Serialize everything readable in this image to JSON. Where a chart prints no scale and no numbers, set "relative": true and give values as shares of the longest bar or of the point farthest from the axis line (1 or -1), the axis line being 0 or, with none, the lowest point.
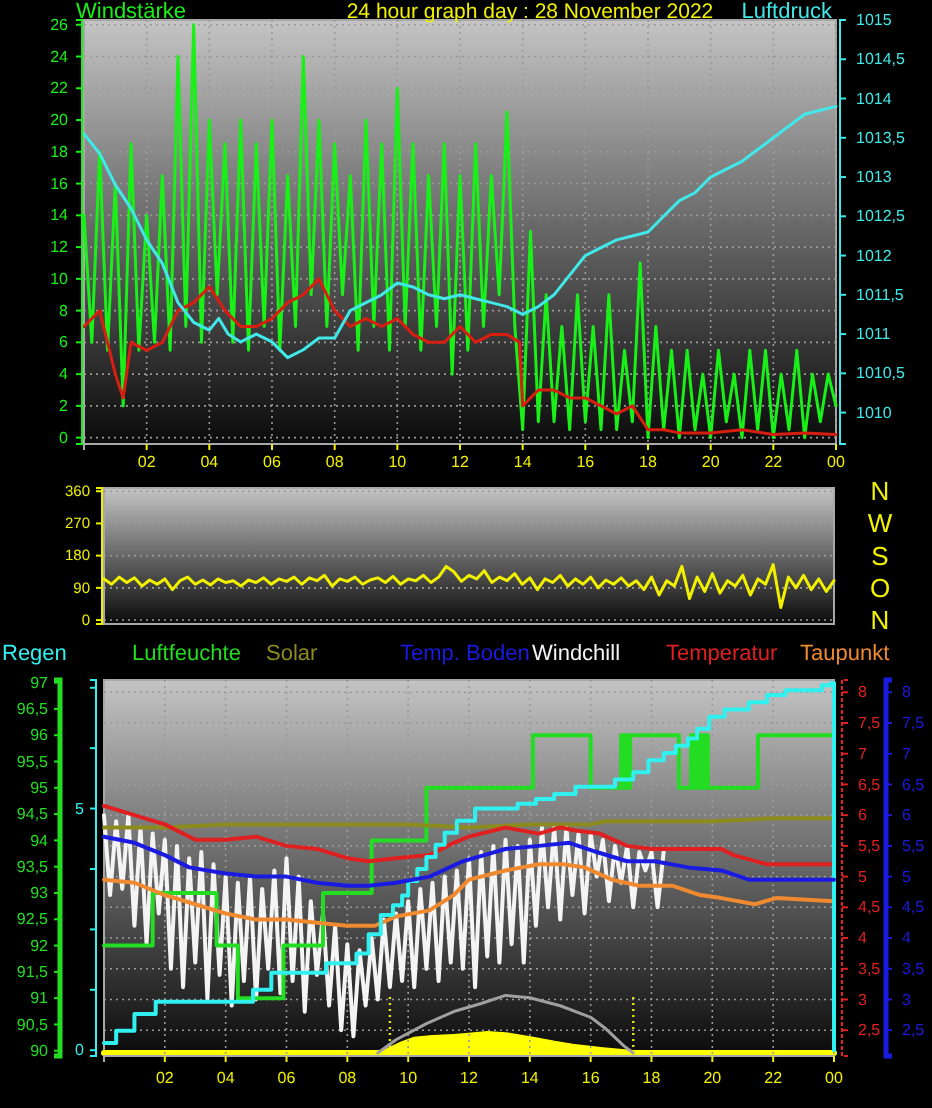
{
  "chart_data": [
    {
      "type": "line",
      "title": "24 hour graph day : 28 November 2022",
      "ylabel": "Windstärke",
      "y2label": "Luftdruck",
      "grid": true,
      "xlim": [
        "2022-11-28T00:00",
        "2022-11-29T00:00"
      ],
      "xticks": [
        {
          "value": "2022-11-28T02:00",
          "label": "02"
        },
        {
          "value": "2022-11-28T04:00",
          "label": "04"
        },
        {
          "value": "2022-11-28T06:00",
          "label": "06"
        },
        {
          "value": "2022-11-28T08:00",
          "label": "08"
        },
        {
          "value": "2022-11-28T10:00",
          "label": "10"
        },
        {
          "value": "2022-11-28T12:00",
          "label": "12"
        },
        {
          "value": "2022-11-28T14:00",
          "label": "14"
        },
        {
          "value": "2022-11-28T16:00",
          "label": "16"
        },
        {
          "value": "2022-11-28T18:00",
          "label": "18"
        },
        {
          "value": "2022-11-28T20:00",
          "label": "20"
        },
        {
          "value": "2022-11-28T22:00",
          "label": "22"
        },
        {
          "value": "2022-11-29T00:00",
          "label": "00"
        }
      ],
      "ylim": [
        -0.4,
        26.3
      ],
      "yticks": [
        0,
        2,
        4,
        6,
        8,
        10,
        12,
        14,
        16,
        18,
        20,
        22,
        24,
        26
      ],
      "y2lim": [
        1009.6,
        1015
      ],
      "y2ticks": [
        1010,
        {
          "value": 1010.5,
          "label": "1010,5"
        },
        1011,
        {
          "value": 1011.5,
          "label": "1011,5"
        },
        1012,
        {
          "value": 1012.5,
          "label": "1012,5"
        },
        1013,
        {
          "value": 1013.5,
          "label": "1013,5"
        },
        1014,
        {
          "value": 1014.5,
          "label": "1014,5"
        },
        1015
      ],
      "x": [
        "2022-11-28T00:00",
        "2022-11-28T00:15",
        "2022-11-28T00:30",
        "2022-11-28T00:45",
        "2022-11-28T01:00",
        "2022-11-28T01:15",
        "2022-11-28T01:30",
        "2022-11-28T01:45",
        "2022-11-28T02:00",
        "2022-11-28T02:15",
        "2022-11-28T02:30",
        "2022-11-28T02:45",
        "2022-11-28T03:00",
        "2022-11-28T03:15",
        "2022-11-28T03:30",
        "2022-11-28T03:45",
        "2022-11-28T04:00",
        "2022-11-28T04:15",
        "2022-11-28T04:30",
        "2022-11-28T04:45",
        "2022-11-28T05:00",
        "2022-11-28T05:15",
        "2022-11-28T05:30",
        "2022-11-28T05:45",
        "2022-11-28T06:00",
        "2022-11-28T06:15",
        "2022-11-28T06:30",
        "2022-11-28T06:45",
        "2022-11-28T07:00",
        "2022-11-28T07:15",
        "2022-11-28T07:30",
        "2022-11-28T07:45",
        "2022-11-28T08:00",
        "2022-11-28T08:15",
        "2022-11-28T08:30",
        "2022-11-28T08:45",
        "2022-11-28T09:00",
        "2022-11-28T09:15",
        "2022-11-28T09:30",
        "2022-11-28T09:45",
        "2022-11-28T10:00",
        "2022-11-28T10:15",
        "2022-11-28T10:30",
        "2022-11-28T10:45",
        "2022-11-28T11:00",
        "2022-11-28T11:15",
        "2022-11-28T11:30",
        "2022-11-28T11:45",
        "2022-11-28T12:00",
        "2022-11-28T12:15",
        "2022-11-28T12:30",
        "2022-11-28T12:45",
        "2022-11-28T13:00",
        "2022-11-28T13:15",
        "2022-11-28T13:30",
        "2022-11-28T13:45",
        "2022-11-28T14:00",
        "2022-11-28T14:15",
        "2022-11-28T14:30",
        "2022-11-28T14:45",
        "2022-11-28T15:00",
        "2022-11-28T15:15",
        "2022-11-28T15:30",
        "2022-11-28T15:45",
        "2022-11-28T16:00",
        "2022-11-28T16:15",
        "2022-11-28T16:30",
        "2022-11-28T16:45",
        "2022-11-28T17:00",
        "2022-11-28T17:15",
        "2022-11-28T17:30",
        "2022-11-28T17:45",
        "2022-11-28T18:00",
        "2022-11-28T18:15",
        "2022-11-28T18:30",
        "2022-11-28T18:45",
        "2022-11-28T19:00",
        "2022-11-28T19:15",
        "2022-11-28T19:30",
        "2022-11-28T19:45",
        "2022-11-28T20:00",
        "2022-11-28T20:15",
        "2022-11-28T20:30",
        "2022-11-28T20:45",
        "2022-11-28T21:00",
        "2022-11-28T21:15",
        "2022-11-28T21:30",
        "2022-11-28T21:45",
        "2022-11-28T22:00",
        "2022-11-28T22:15",
        "2022-11-28T22:30",
        "2022-11-28T22:45",
        "2022-11-28T23:00",
        "2022-11-28T23:15",
        "2022-11-28T23:30",
        "2022-11-28T23:45",
        "2022-11-29T00:00"
      ],
      "series": [
        {
          "color": "#18f018",
          "values": [
            14,
            6,
            18,
            5.5,
            16,
            2,
            18.5,
            5.5,
            14,
            6,
            16.5,
            5.5,
            24,
            7,
            26,
            6,
            20,
            9,
            18.5,
            6,
            20,
            5.5,
            18.5,
            7,
            20,
            5.5,
            16.5,
            7,
            24,
            9,
            20,
            7,
            18.5,
            9,
            16.5,
            5.5,
            20,
            7,
            18.5,
            5.5,
            22,
            7,
            18.5,
            5.5,
            16.5,
            7,
            18.5,
            4,
            16.5,
            5.5,
            18.5,
            7,
            16.5,
            9,
            20.5,
            7,
            0.5,
            13,
            1,
            9,
            1,
            7,
            0.5,
            9,
            1,
            7,
            0.5,
            9,
            0.5,
            5.5,
            1,
            11,
            0,
            7,
            0.5,
            5.5,
            0,
            5.5,
            0.5,
            4,
            0,
            5.5,
            1,
            4,
            0,
            5.5,
            0.5,
            5.5,
            0,
            4,
            0.5,
            5.5,
            0,
            4,
            1,
            4,
            2
          ]
        },
        {
          "color": "#d81e10",
          "x": [
            "2022-11-28T00:00",
            "2022-11-28T00:30",
            "2022-11-28T01:00",
            "2022-11-28T01:15",
            "2022-11-28T01:30",
            "2022-11-28T02:00",
            "2022-11-28T02:30",
            "2022-11-28T03:00",
            "2022-11-28T03:30",
            "2022-11-28T04:00",
            "2022-11-28T04:30",
            "2022-11-28T05:00",
            "2022-11-28T05:30",
            "2022-11-28T06:00",
            "2022-11-28T06:30",
            "2022-11-28T07:00",
            "2022-11-28T07:30",
            "2022-11-28T08:00",
            "2022-11-28T08:30",
            "2022-11-28T09:00",
            "2022-11-28T09:30",
            "2022-11-28T10:00",
            "2022-11-28T10:30",
            "2022-11-28T11:00",
            "2022-11-28T11:30",
            "2022-11-28T12:00",
            "2022-11-28T12:30",
            "2022-11-28T13:00",
            "2022-11-28T13:30",
            "2022-11-28T13:54",
            "2022-11-28T14:00",
            "2022-11-28T14:30",
            "2022-11-28T15:00",
            "2022-11-28T15:30",
            "2022-11-28T16:00",
            "2022-11-28T16:30",
            "2022-11-28T17:00",
            "2022-11-28T17:30",
            "2022-11-28T18:00",
            "2022-11-28T18:30",
            "2022-11-28T19:00",
            "2022-11-28T20:00",
            "2022-11-28T21:00",
            "2022-11-28T22:00",
            "2022-11-28T23:00",
            "2022-11-29T00:00"
          ],
          "values": [
            7,
            8,
            4,
            2.5,
            6,
            5.5,
            6,
            8,
            8.5,
            9.5,
            8,
            7,
            7,
            7.5,
            8.5,
            9,
            10,
            8,
            7,
            7.5,
            7,
            7.5,
            6.5,
            6,
            6,
            7,
            6,
            6.5,
            6.5,
            6,
            2,
            3,
            3,
            2.5,
            2.5,
            2,
            1.5,
            2,
            0.5,
            0.5,
            0.3,
            0.3,
            0.5,
            0.2,
            0.3,
            0.2
          ]
        },
        {
          "color": "#40e8e8",
          "axis": "y2",
          "x": [
            "2022-11-28T00:00",
            "2022-11-28T00:30",
            "2022-11-28T01:00",
            "2022-11-28T01:30",
            "2022-11-28T02:00",
            "2022-11-28T02:30",
            "2022-11-28T03:00",
            "2022-11-28T03:30",
            "2022-11-28T04:00",
            "2022-11-28T04:18",
            "2022-11-28T04:36",
            "2022-11-28T05:00",
            "2022-11-28T05:30",
            "2022-11-28T06:00",
            "2022-11-28T06:30",
            "2022-11-28T07:00",
            "2022-11-28T07:30",
            "2022-11-28T08:00",
            "2022-11-28T08:30",
            "2022-11-28T09:00",
            "2022-11-28T09:30",
            "2022-11-28T10:00",
            "2022-11-28T10:30",
            "2022-11-28T11:00",
            "2022-11-28T11:30",
            "2022-11-28T12:00",
            "2022-11-28T12:30",
            "2022-11-28T13:00",
            "2022-11-28T13:30",
            "2022-11-28T14:00",
            "2022-11-28T14:30",
            "2022-11-28T15:00",
            "2022-11-28T15:30",
            "2022-11-28T16:00",
            "2022-11-28T16:30",
            "2022-11-28T17:00",
            "2022-11-28T17:30",
            "2022-11-28T18:00",
            "2022-11-28T18:30",
            "2022-11-28T19:00",
            "2022-11-28T19:30",
            "2022-11-28T20:00",
            "2022-11-28T20:30",
            "2022-11-28T21:00",
            "2022-11-28T21:30",
            "2022-11-28T22:00",
            "2022-11-28T22:30",
            "2022-11-28T23:00",
            "2022-11-28T23:30",
            "2022-11-29T00:00"
          ],
          "values": [
            1013.55,
            1013.3,
            1012.9,
            1012.6,
            1012.2,
            1011.9,
            1011.4,
            1011.15,
            1011.05,
            1011.2,
            1011,
            1010.9,
            1011,
            1010.9,
            1010.7,
            1010.8,
            1010.95,
            1010.95,
            1011.3,
            1011.4,
            1011.5,
            1011.65,
            1011.6,
            1011.5,
            1011.45,
            1011.5,
            1011.45,
            1011.4,
            1011.35,
            1011.25,
            1011.35,
            1011.5,
            1011.75,
            1012,
            1012.1,
            1012.2,
            1012.25,
            1012.3,
            1012.5,
            1012.7,
            1012.8,
            1013,
            1013.1,
            1013.2,
            1013.35,
            1013.5,
            1013.65,
            1013.8,
            1013.85,
            1013.9
          ]
        }
      ]
    },
    {
      "type": "line",
      "grid": "y",
      "tick_labels": "y",
      "xlim": [
        "2022-11-28T00:00",
        "2022-11-29T00:00"
      ],
      "ylim": [
        -11,
        369
      ],
      "yticks": [
        0,
        90,
        180,
        270,
        360
      ],
      "annotations": [
        "N",
        "W",
        "S",
        "O",
        "N"
      ],
      "x": [
        "2022-11-28T00:00",
        "2022-11-28T00:15",
        "2022-11-28T00:30",
        "2022-11-28T00:45",
        "2022-11-28T01:00",
        "2022-11-28T01:15",
        "2022-11-28T01:30",
        "2022-11-28T01:45",
        "2022-11-28T02:00",
        "2022-11-28T02:15",
        "2022-11-28T02:30",
        "2022-11-28T02:45",
        "2022-11-28T03:00",
        "2022-11-28T03:15",
        "2022-11-28T03:30",
        "2022-11-28T03:45",
        "2022-11-28T04:00",
        "2022-11-28T04:15",
        "2022-11-28T04:30",
        "2022-11-28T04:45",
        "2022-11-28T05:00",
        "2022-11-28T05:15",
        "2022-11-28T05:30",
        "2022-11-28T05:45",
        "2022-11-28T06:00",
        "2022-11-28T06:15",
        "2022-11-28T06:30",
        "2022-11-28T06:45",
        "2022-11-28T07:00",
        "2022-11-28T07:15",
        "2022-11-28T07:30",
        "2022-11-28T07:45",
        "2022-11-28T08:00",
        "2022-11-28T08:15",
        "2022-11-28T08:30",
        "2022-11-28T08:45",
        "2022-11-28T09:00",
        "2022-11-28T09:15",
        "2022-11-28T09:30",
        "2022-11-28T09:45",
        "2022-11-28T10:00",
        "2022-11-28T10:15",
        "2022-11-28T10:30",
        "2022-11-28T10:45",
        "2022-11-28T11:00",
        "2022-11-28T11:15",
        "2022-11-28T11:30",
        "2022-11-28T11:45",
        "2022-11-28T12:00",
        "2022-11-28T12:15",
        "2022-11-28T12:30",
        "2022-11-28T12:45",
        "2022-11-28T13:00",
        "2022-11-28T13:15",
        "2022-11-28T13:30",
        "2022-11-28T13:45",
        "2022-11-28T14:00",
        "2022-11-28T14:15",
        "2022-11-28T14:30",
        "2022-11-28T14:45",
        "2022-11-28T15:00",
        "2022-11-28T15:15",
        "2022-11-28T15:30",
        "2022-11-28T15:45",
        "2022-11-28T16:00",
        "2022-11-28T16:15",
        "2022-11-28T16:30",
        "2022-11-28T16:45",
        "2022-11-28T17:00",
        "2022-11-28T17:15",
        "2022-11-28T17:30",
        "2022-11-28T17:45",
        "2022-11-28T18:00",
        "2022-11-28T18:15",
        "2022-11-28T18:30",
        "2022-11-28T18:45",
        "2022-11-28T19:00",
        "2022-11-28T19:15",
        "2022-11-28T19:30",
        "2022-11-28T19:45",
        "2022-11-28T20:00",
        "2022-11-28T20:15",
        "2022-11-28T20:30",
        "2022-11-28T20:45",
        "2022-11-28T21:00",
        "2022-11-28T21:15",
        "2022-11-28T21:30",
        "2022-11-28T21:45",
        "2022-11-28T22:00",
        "2022-11-28T22:15",
        "2022-11-28T22:30",
        "2022-11-28T22:45",
        "2022-11-28T23:00",
        "2022-11-28T23:15",
        "2022-11-28T23:30",
        "2022-11-28T23:45",
        "2022-11-29T00:00"
      ],
      "series": [
        {
          "color": "#f0f000",
          "values": [
            115,
            100,
            120,
            105,
            118,
            95,
            112,
            100,
            115,
            85,
            110,
            120,
            100,
            112,
            98,
            115,
            105,
            110,
            95,
            112,
            105,
            118,
            100,
            115,
            108,
            120,
            100,
            118,
            110,
            125,
            95,
            115,
            108,
            120,
            100,
            112,
            118,
            105,
            122,
            100,
            115,
            110,
            125,
            105,
            120,
            150,
            135,
            108,
            125,
            115,
            138,
            105,
            120,
            110,
            130,
            100,
            118,
            85,
            115,
            105,
            125,
            95,
            115,
            100,
            120,
            90,
            112,
            100,
            118,
            95,
            110,
            85,
            120,
            70,
            110,
            95,
            150,
            60,
            120,
            80,
            130,
            75,
            110,
            95,
            125,
            70,
            115,
            100,
            155,
            35,
            120,
            90,
            125,
            85,
            115,
            80,
            110
          ]
        }
      ]
    },
    {
      "type": "line",
      "legend": "top",
      "grid": true,
      "xlim": [
        "2022-11-28T00:00",
        "2022-11-29T00:00"
      ],
      "xticks": [
        {
          "value": "2022-11-28T02:00",
          "label": "02"
        },
        {
          "value": "2022-11-28T04:00",
          "label": "04"
        },
        {
          "value": "2022-11-28T06:00",
          "label": "06"
        },
        {
          "value": "2022-11-28T08:00",
          "label": "08"
        },
        {
          "value": "2022-11-28T10:00",
          "label": "10"
        },
        {
          "value": "2022-11-28T12:00",
          "label": "12"
        },
        {
          "value": "2022-11-28T14:00",
          "label": "14"
        },
        {
          "value": "2022-11-28T16:00",
          "label": "16"
        },
        {
          "value": "2022-11-28T18:00",
          "label": "18"
        },
        {
          "value": "2022-11-28T20:00",
          "label": "20"
        },
        {
          "value": "2022-11-28T22:00",
          "label": "22"
        },
        {
          "value": "2022-11-29T00:00",
          "label": "00"
        }
      ],
      "ylim": [
        89.9,
        97.05
      ],
      "yticks": [
        90,
        {
          "value": 90.5,
          "label": "90,5"
        },
        91,
        {
          "value": 91.5,
          "label": "91,5"
        },
        92,
        {
          "value": 92.5,
          "label": "92,5"
        },
        93,
        {
          "value": 93.5,
          "label": "93,5"
        },
        94,
        {
          "value": 94.5,
          "label": "94,5"
        },
        95,
        {
          "value": 95.5,
          "label": "95,5"
        },
        96,
        {
          "value": 96.5,
          "label": "96,5"
        },
        97
      ],
      "y2lim": [
        2.08,
        8.2
      ],
      "y2ticks": [
        {
          "value": 2.5,
          "label": "2,5"
        },
        3,
        {
          "value": 3.5,
          "label": "3,5"
        },
        4,
        {
          "value": 4.5,
          "label": "4,5"
        },
        5,
        {
          "value": 5.5,
          "label": "5,5"
        },
        6,
        {
          "value": 6.5,
          "label": "6,5"
        },
        7,
        {
          "value": 7.5,
          "label": "7,5"
        },
        8
      ],
      "y3lim": [
        -0.12,
        7.66
      ],
      "y3ticks": [
        0,
        {
          "value": 1.25,
          "label": null
        },
        {
          "value": 2.5,
          "label": null
        },
        {
          "value": 3.75,
          "label": null
        },
        5,
        {
          "value": 6.25,
          "label": null
        },
        {
          "value": 7.5,
          "label": null
        }
      ],
      "series": [
        {
          "name": "Regen",
          "type": "step",
          "axis": "y3",
          "color": "#30f0f0",
          "x": [
            "2022-11-28T00:00",
            "2022-11-28T00:24",
            "2022-11-28T01:00",
            "2022-11-28T01:42",
            "2022-11-28T04:54",
            "2022-11-28T05:30",
            "2022-11-28T07:18",
            "2022-11-28T08:18",
            "2022-11-28T08:42",
            "2022-11-28T09:06",
            "2022-11-28T09:30",
            "2022-11-28T09:48",
            "2022-11-28T10:00",
            "2022-11-28T10:18",
            "2022-11-28T10:36",
            "2022-11-28T10:54",
            "2022-11-28T11:12",
            "2022-11-28T11:36",
            "2022-11-28T12:12",
            "2022-11-28T13:36",
            "2022-11-28T14:12",
            "2022-11-28T14:48",
            "2022-11-28T15:30",
            "2022-11-28T16:48",
            "2022-11-28T17:24",
            "2022-11-28T17:54",
            "2022-11-28T18:24",
            "2022-11-28T18:48",
            "2022-11-28T19:12",
            "2022-11-28T19:30",
            "2022-11-28T19:54",
            "2022-11-28T20:24",
            "2022-11-28T21:12",
            "2022-11-28T21:48",
            "2022-11-28T22:24",
            "2022-11-28T23:36",
            "2022-11-28T23:54",
            "2022-11-29T00:00"
          ],
          "values": [
            0.15,
            0.4,
            0.75,
            1,
            1.25,
            1.6,
            1.8,
            2,
            2.4,
            2.8,
            3,
            3.2,
            3.5,
            3.75,
            4,
            4.25,
            4.5,
            4.75,
            5,
            5.1,
            5.2,
            5.3,
            5.45,
            5.6,
            5.75,
            6,
            6.15,
            6.3,
            6.45,
            6.65,
            6.9,
            7.05,
            7.2,
            7.35,
            7.45,
            7.55,
            7.6,
            0
          ]
        },
        {
          "name": "Luftfeuchte",
          "type": "step",
          "color": "#22dd22",
          "x": [
            "2022-11-28T00:00",
            "2022-11-28T01:36",
            "2022-11-28T03:42",
            "2022-11-28T04:24",
            "2022-11-28T05:54",
            "2022-11-28T07:12",
            "2022-11-28T08:48",
            "2022-11-28T10:36",
            "2022-11-28T14:06",
            "2022-11-28T16:00",
            "2022-11-28T17:00",
            "2022-11-28T17:03",
            "2022-11-28T17:06",
            "2022-11-28T17:09",
            "2022-11-28T17:12",
            "2022-11-28T17:15",
            "2022-11-28T17:18",
            "2022-11-28T18:54",
            "2022-11-28T19:18",
            "2022-11-28T19:21",
            "2022-11-28T19:24",
            "2022-11-28T19:27",
            "2022-11-28T19:30",
            "2022-11-28T19:33",
            "2022-11-28T19:36",
            "2022-11-28T19:39",
            "2022-11-28T19:42",
            "2022-11-28T19:45",
            "2022-11-28T19:48",
            "2022-11-28T19:51",
            "2022-11-28T21:30",
            "2022-11-29T00:00"
          ],
          "values": [
            92,
            93,
            92,
            91,
            92,
            93,
            94,
            95,
            96,
            95,
            96,
            95,
            96,
            95,
            96,
            95,
            96,
            95,
            96,
            95,
            96,
            95,
            96,
            95,
            96,
            95,
            96,
            95,
            96,
            95,
            96,
            96
          ]
        },
        {
          "name": "Solar",
          "axis": "y2",
          "color": "#8c8c1e",
          "x": [
            "2022-11-28T00:00",
            "2022-11-28T02:00",
            "2022-11-28T04:00",
            "2022-11-28T05:00",
            "2022-11-28T06:00",
            "2022-11-28T08:00",
            "2022-11-28T10:00",
            "2022-11-28T12:00",
            "2022-11-28T14:00",
            "2022-11-28T16:00",
            "2022-11-28T16:30",
            "2022-11-28T18:00",
            "2022-11-28T20:00",
            "2022-11-28T22:00",
            "2022-11-28T23:00",
            "2022-11-29T00:00"
          ],
          "values": [
            5.8,
            5.8,
            5.85,
            5.85,
            5.85,
            5.85,
            5.85,
            5.8,
            5.85,
            5.85,
            5.9,
            5.9,
            5.9,
            5.95,
            5.95,
            5.95
          ]
        },
        {
          "name": "Windchill",
          "axis": "y2",
          "color": "#f4f4f4",
          "x": [
            "2022-11-28T00:00",
            "2022-11-28T00:12",
            "2022-11-28T00:24",
            "2022-11-28T00:36",
            "2022-11-28T00:48",
            "2022-11-28T01:00",
            "2022-11-28T01:12",
            "2022-11-28T01:24",
            "2022-11-28T01:36",
            "2022-11-28T01:48",
            "2022-11-28T02:00",
            "2022-11-28T02:12",
            "2022-11-28T02:24",
            "2022-11-28T02:36",
            "2022-11-28T02:48",
            "2022-11-28T03:00",
            "2022-11-28T03:12",
            "2022-11-28T03:24",
            "2022-11-28T03:36",
            "2022-11-28T03:48",
            "2022-11-28T04:00",
            "2022-11-28T04:12",
            "2022-11-28T04:24",
            "2022-11-28T04:36",
            "2022-11-28T04:48",
            "2022-11-28T05:00",
            "2022-11-28T05:12",
            "2022-11-28T05:24",
            "2022-11-28T05:36",
            "2022-11-28T05:48",
            "2022-11-28T06:00",
            "2022-11-28T06:12",
            "2022-11-28T06:24",
            "2022-11-28T06:36",
            "2022-11-28T06:48",
            "2022-11-28T07:00",
            "2022-11-28T07:12",
            "2022-11-28T07:24",
            "2022-11-28T07:36",
            "2022-11-28T07:48",
            "2022-11-28T08:00",
            "2022-11-28T08:12",
            "2022-11-28T08:24",
            "2022-11-28T08:36",
            "2022-11-28T08:48",
            "2022-11-28T09:00",
            "2022-11-28T09:12",
            "2022-11-28T09:24",
            "2022-11-28T09:36",
            "2022-11-28T09:48",
            "2022-11-28T10:00",
            "2022-11-28T10:12",
            "2022-11-28T10:24",
            "2022-11-28T10:36",
            "2022-11-28T10:48",
            "2022-11-28T11:00",
            "2022-11-28T11:12",
            "2022-11-28T11:24",
            "2022-11-28T11:36",
            "2022-11-28T11:48",
            "2022-11-28T12:00",
            "2022-11-28T12:12",
            "2022-11-28T12:24",
            "2022-11-28T12:36",
            "2022-11-28T12:48",
            "2022-11-28T13:00",
            "2022-11-28T13:12",
            "2022-11-28T13:24",
            "2022-11-28T13:36",
            "2022-11-28T13:48",
            "2022-11-28T14:00",
            "2022-11-28T14:12",
            "2022-11-28T14:24",
            "2022-11-28T14:36",
            "2022-11-28T14:48",
            "2022-11-28T15:00",
            "2022-11-28T15:12",
            "2022-11-28T15:24",
            "2022-11-28T15:36",
            "2022-11-28T15:48",
            "2022-11-28T16:00",
            "2022-11-28T16:12",
            "2022-11-28T16:24",
            "2022-11-28T16:36",
            "2022-11-28T16:48",
            "2022-11-28T17:00",
            "2022-11-28T17:12",
            "2022-11-28T17:24",
            "2022-11-28T17:36",
            "2022-11-28T17:48",
            "2022-11-28T18:00",
            "2022-11-28T18:12",
            "2022-11-28T18:24"
          ],
          "values": [
            6.0,
            4.7,
            5.9,
            4.8,
            6.0,
            4.2,
            5.8,
            3.9,
            5.7,
            4.4,
            5.6,
            3.5,
            5.5,
            3.2,
            5.3,
            3.6,
            5.4,
            3.0,
            5.2,
            3.4,
            5.0,
            2.9,
            4.9,
            3.3,
            5.0,
            3.0,
            4.8,
            3.5,
            5.1,
            3.1,
            5.3,
            3.3,
            5.0,
            2.8,
            4.6,
            3.4,
            4.4,
            2.9,
            4.2,
            2.5,
            3.9,
            2.4,
            3.8,
            2.9,
            4.0,
            3.0,
            4.3,
            3.2,
            4.4,
            3.3,
            4.6,
            3.2,
            4.8,
            3.5,
            4.9,
            3.3,
            5.0,
            3.6,
            5.1,
            3.5,
            5.3,
            3.2,
            5.4,
            3.7,
            5.5,
            3.6,
            5.6,
            3.9,
            5.5,
            3.6,
            5.6,
            4.2,
            5.8,
            4.5,
            5.8,
            4.3,
            5.8,
            4.7,
            5.7,
            4.4,
            5.7,
            5.0,
            5.6,
            4.6,
            5.5,
            4.9,
            5.5,
            4.5,
            5.4,
            5.1,
            5.4,
            4.5,
            5.4
          ]
        },
        {
          "name": "Temperatur",
          "axis": "y2",
          "color": "#e02020",
          "x": [
            "2022-11-28T00:00",
            "2022-11-28T01:00",
            "2022-11-28T02:00",
            "2022-11-28T03:00",
            "2022-11-28T04:00",
            "2022-11-28T05:00",
            "2022-11-28T06:00",
            "2022-11-28T07:00",
            "2022-11-28T08:00",
            "2022-11-28T08:42",
            "2022-11-28T09:36",
            "2022-11-28T10:42",
            "2022-11-28T11:30",
            "2022-11-28T12:00",
            "2022-11-28T13:12",
            "2022-11-28T14:18",
            "2022-11-28T15:00",
            "2022-11-28T15:30",
            "2022-11-28T16:18",
            "2022-11-28T17:12",
            "2022-11-28T18:00",
            "2022-11-28T19:00",
            "2022-11-28T20:18",
            "2022-11-28T20:42",
            "2022-11-28T21:48",
            "2022-11-29T00:00"
          ],
          "values": [
            6.15,
            6,
            5.85,
            5.6,
            5.6,
            5.65,
            5.5,
            5.45,
            5.3,
            5.25,
            5.3,
            5.35,
            5.55,
            5.65,
            5.8,
            5.7,
            5.8,
            5.75,
            5.7,
            5.5,
            5.45,
            5.45,
            5.45,
            5.35,
            5.2,
            5.2
          ]
        },
        {
          "name": "Taupunkt",
          "axis": "y2",
          "color": "#f08a30",
          "x": [
            "2022-11-28T00:00",
            "2022-11-28T01:00",
            "2022-11-28T02:00",
            "2022-11-28T03:00",
            "2022-11-28T04:00",
            "2022-11-28T05:00",
            "2022-11-28T06:00",
            "2022-11-28T07:00",
            "2022-11-28T08:00",
            "2022-11-28T08:54",
            "2022-11-28T09:36",
            "2022-11-28T10:42",
            "2022-11-28T11:30",
            "2022-11-28T12:00",
            "2022-11-28T13:12",
            "2022-11-28T14:18",
            "2022-11-28T15:06",
            "2022-11-28T15:48",
            "2022-11-28T16:42",
            "2022-11-28T17:36",
            "2022-11-28T18:42",
            "2022-11-28T19:36",
            "2022-11-28T20:18",
            "2022-11-28T21:24",
            "2022-11-28T22:06",
            "2022-11-29T00:00"
          ],
          "values": [
            4.95,
            4.9,
            4.7,
            4.55,
            4.4,
            4.3,
            4.3,
            4.25,
            4.2,
            4.2,
            4.35,
            4.45,
            4.7,
            4.95,
            5.1,
            5.2,
            5.2,
            5.15,
            4.95,
            4.85,
            4.85,
            4.7,
            4.65,
            4.55,
            4.65,
            4.6
          ]
        }
      ]
    },
    {
      "type": "area",
      "relative": true,
      "tick_labels": false,
      "xlim": [
        "2022-11-28T00:00",
        "2022-11-29T00:00"
      ],
      "ref_lines": [
        {
          "axis": "x",
          "value": "2022-11-28T09:24",
          "color": "#e8e800",
          "line_style": "dotted"
        },
        {
          "axis": "x",
          "value": "2022-11-28T17:24",
          "color": "#e8e800",
          "line_style": "dotted"
        }
      ],
      "series": [
        {
          "color": "#ffff00",
          "x": [
            "2022-11-28T00:00",
            "2022-11-28T09:12",
            "2022-11-28T09:30",
            "2022-11-28T09:48",
            "2022-11-28T10:12",
            "2022-11-28T10:48",
            "2022-11-28T11:30",
            "2022-11-28T12:00",
            "2022-11-28T12:36",
            "2022-11-28T13:12",
            "2022-11-28T14:06",
            "2022-11-28T14:48",
            "2022-11-28T15:24",
            "2022-11-28T16:24",
            "2022-11-28T17:24",
            "2022-11-29T00:00"
          ],
          "values": [
            0,
            0,
            0.08,
            0.15,
            0.23,
            0.26,
            0.28,
            0.3,
            0.33,
            0.31,
            0.23,
            0.16,
            0.11,
            0.05,
            0,
            0
          ]
        },
        {
          "type": "line",
          "color": "#a0a0a0",
          "x": [
            "2022-11-28T09:00",
            "2022-11-28T09:36",
            "2022-11-28T10:36",
            "2022-11-28T11:30",
            "2022-11-28T12:24",
            "2022-11-28T13:12",
            "2022-11-28T14:00",
            "2022-11-28T15:00",
            "2022-11-28T16:00",
            "2022-11-28T16:30",
            "2022-11-28T17:06",
            "2022-11-28T17:24"
          ],
          "values": [
            0,
            0.23,
            0.51,
            0.72,
            0.86,
            1,
            0.96,
            0.82,
            0.62,
            0.42,
            0.12,
            0
          ]
        }
      ]
    },
    {
      "type": "line",
      "legend": "top",
      "tick_labels": "y",
      "xlim": [
        "2022-11-28T00:00",
        "2022-11-29T00:00"
      ],
      "ylim": [
        2.08,
        8.2
      ],
      "yticks": [
        {
          "value": 2.5,
          "label": "2,5"
        },
        3,
        {
          "value": 3.5,
          "label": "3,5"
        },
        4,
        {
          "value": 4.5,
          "label": "4,5"
        },
        5,
        {
          "value": 5.5,
          "label": "5,5"
        },
        6,
        {
          "value": 6.5,
          "label": "6,5"
        },
        7,
        {
          "value": 7.5,
          "label": "7,5"
        },
        8
      ],
      "series": [
        {
          "name": "Temp. Boden",
          "color": "#1a1ae0",
          "x": [
            "2022-11-28T00:00",
            "2022-11-28T01:00",
            "2022-11-28T02:00",
            "2022-11-28T02:48",
            "2022-11-28T04:00",
            "2022-11-28T05:00",
            "2022-11-28T06:00",
            "2022-11-28T07:00",
            "2022-11-28T08:00",
            "2022-11-28T08:42",
            "2022-11-28T09:36",
            "2022-11-28T10:42",
            "2022-11-28T11:48",
            "2022-11-28T12:30",
            "2022-11-28T13:12",
            "2022-11-28T14:18",
            "2022-11-28T15:18",
            "2022-11-28T16:12",
            "2022-11-28T17:12",
            "2022-11-28T18:06",
            "2022-11-28T19:12",
            "2022-11-28T20:18",
            "2022-11-28T21:12",
            "2022-11-29T00:00"
          ],
          "values": [
            5.65,
            5.55,
            5.35,
            5.15,
            5.05,
            5,
            5,
            4.9,
            4.85,
            4.85,
            4.9,
            5,
            5.25,
            5.35,
            5.45,
            5.5,
            5.55,
            5.4,
            5.25,
            5.25,
            5.15,
            5.1,
            4.95,
            4.95
          ]
        }
      ]
    }
  ]
}
